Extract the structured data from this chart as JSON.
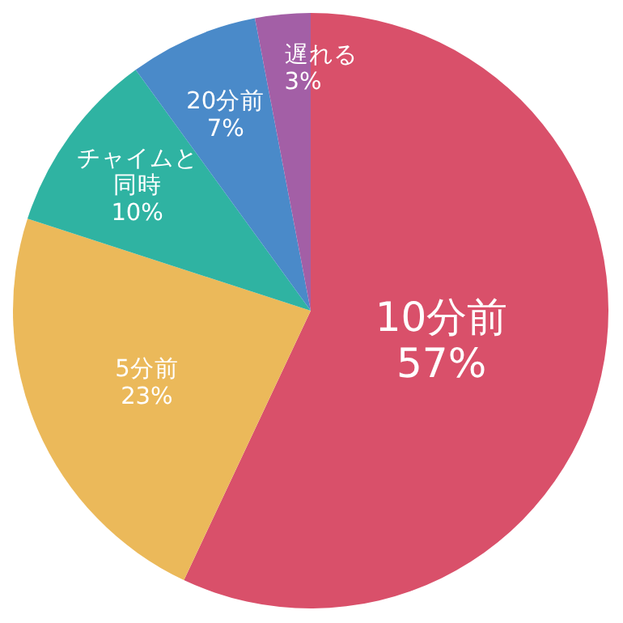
{
  "chart_data": {
    "type": "pie",
    "categories": [
      "10分前",
      "5分前",
      "チャイムと同時",
      "20分前",
      "遅れる"
    ],
    "values": [
      57,
      23,
      10,
      7,
      3
    ],
    "value_labels": [
      "57%",
      "23%",
      "10%",
      "7%",
      "3%"
    ],
    "colors": [
      "#d9506a",
      "#ebb95a",
      "#2fb3a2",
      "#4a8ac9",
      "#a35fa6"
    ]
  }
}
